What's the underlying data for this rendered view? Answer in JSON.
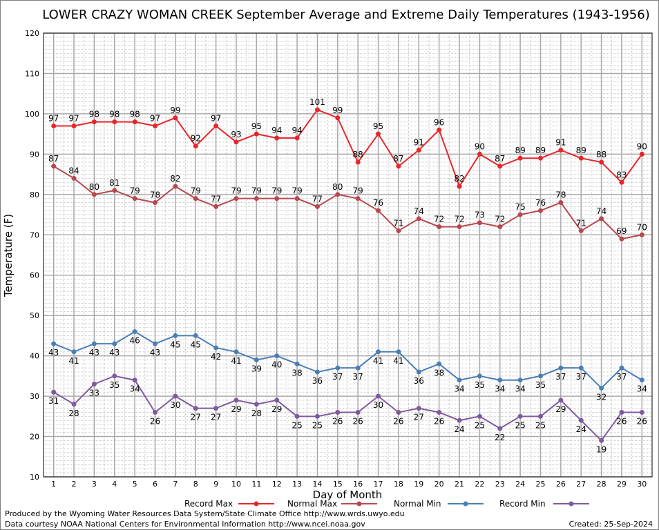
{
  "chart_data": {
    "type": "line",
    "title": "LOWER CRAZY WOMAN CREEK September Average and Extreme Daily Temperatures (1943-1956)",
    "xlabel": "Day of Month",
    "ylabel": "Temperature (F)",
    "ylim": [
      10,
      120
    ],
    "xlim": [
      0.5,
      30.5
    ],
    "yticks": [
      10,
      20,
      30,
      40,
      50,
      60,
      70,
      80,
      90,
      100,
      110,
      120
    ],
    "x": [
      1,
      2,
      3,
      4,
      5,
      6,
      7,
      8,
      9,
      10,
      11,
      12,
      13,
      14,
      15,
      16,
      17,
      18,
      19,
      20,
      21,
      22,
      23,
      24,
      25,
      26,
      27,
      28,
      29,
      30
    ],
    "grid": true,
    "legend_position": "bottom",
    "series": [
      {
        "name": "Record Max",
        "color": "#e8262a",
        "label_pos": "above",
        "values": [
          97,
          97,
          98,
          98,
          98,
          97,
          99,
          92,
          97,
          93,
          95,
          94,
          94,
          101,
          99,
          88,
          95,
          87,
          91,
          96,
          82,
          90,
          87,
          89,
          89,
          91,
          89,
          88,
          83,
          90
        ]
      },
      {
        "name": "Normal Max",
        "color": "#b8484f",
        "label_pos": "above",
        "values": [
          87,
          84,
          80,
          81,
          79,
          78,
          82,
          79,
          77,
          79,
          79,
          79,
          79,
          77,
          80,
          79,
          76,
          71,
          74,
          72,
          72,
          73,
          72,
          75,
          76,
          78,
          71,
          74,
          69,
          70
        ]
      },
      {
        "name": "Normal Min",
        "color": "#4a7fb5",
        "label_pos": "below",
        "values": [
          43,
          41,
          43,
          43,
          46,
          43,
          45,
          45,
          42,
          41,
          39,
          40,
          38,
          36,
          37,
          37,
          41,
          41,
          36,
          38,
          34,
          35,
          34,
          34,
          35,
          37,
          37,
          32,
          37,
          34
        ]
      },
      {
        "name": "Record Min",
        "color": "#7f5a9e",
        "label_pos": "below",
        "values": [
          31,
          28,
          33,
          35,
          34,
          26,
          30,
          27,
          27,
          29,
          28,
          29,
          25,
          25,
          26,
          26,
          30,
          26,
          27,
          26,
          24,
          25,
          22,
          25,
          25,
          29,
          24,
          19,
          26,
          26
        ]
      }
    ]
  },
  "footer": {
    "line1": "Produced by the Wyoming Water Resources Data System/State Climate Office http://www.wrds.uwyo.edu",
    "line2": "Data courtesy NOAA National Centers for Environmental Information http://www.ncei.noaa.gov",
    "created": "Created:  25-Sep-2024"
  }
}
